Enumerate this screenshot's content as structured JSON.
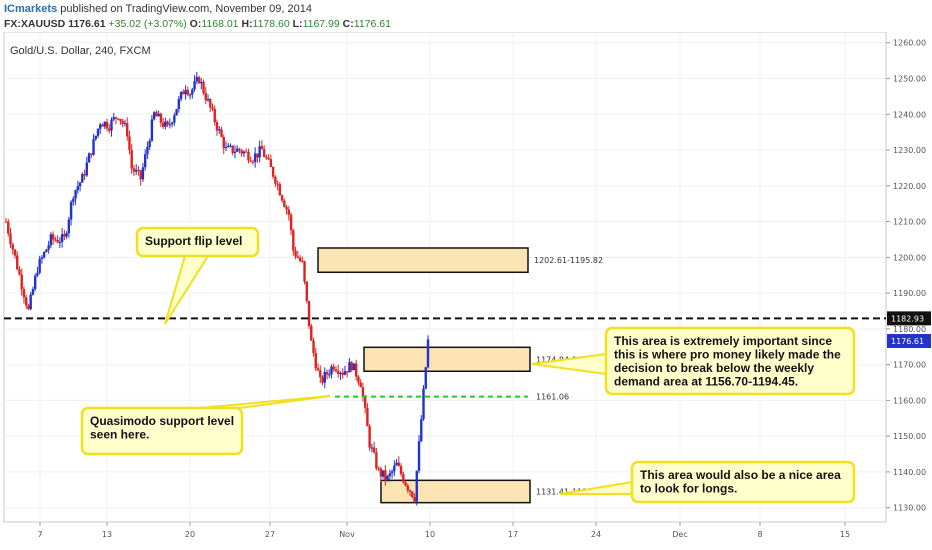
{
  "header": {
    "brand": "ICmarkets",
    "published": "published on TradingView.com, November 09, 2014",
    "symbol": "FX:XAUUSD",
    "price": "1176.61",
    "change": "+35.02 (+3.07%)",
    "o_label": "O:",
    "o_value": "1168.01",
    "h_label": "H:",
    "h_value": "1178.60",
    "l_label": "L:",
    "l_value": "1167.99",
    "c_label": "C:",
    "c_value": "1176.61"
  },
  "chart_data": {
    "type": "candlestick",
    "title": "Gold/U.S. Dollar, 240, FXCM",
    "y_ticks": [
      "1260.00",
      "1250.00",
      "1240.00",
      "1230.00",
      "1220.00",
      "1210.00",
      "1200.00",
      "1190.00",
      "1180.00",
      "1170.00",
      "1160.00",
      "1150.00",
      "1140.00",
      "1130.00"
    ],
    "x_ticks": [
      "7",
      "13",
      "20",
      "27",
      "Nov",
      "10",
      "17",
      "24",
      "Dec",
      "8",
      "15"
    ],
    "ylim": [
      1126,
      1263
    ],
    "colors": {
      "up": "#2233cc",
      "down": "#dd2222",
      "zone_fill": "#fbe3b4",
      "callout_fill": "#ffffcc",
      "callout_border": "#f0e020"
    },
    "price_path": [
      [
        0,
        1210
      ],
      [
        3,
        1195
      ],
      [
        5,
        1185
      ],
      [
        7,
        1197
      ],
      [
        10,
        1205
      ],
      [
        13,
        1205
      ],
      [
        15,
        1218
      ],
      [
        17,
        1222
      ],
      [
        19,
        1230
      ],
      [
        21,
        1238
      ],
      [
        23,
        1237
      ],
      [
        25,
        1240
      ],
      [
        27,
        1235
      ],
      [
        28,
        1225
      ],
      [
        30,
        1222
      ],
      [
        33,
        1240
      ],
      [
        36,
        1236
      ],
      [
        40,
        1248
      ],
      [
        41,
        1246
      ],
      [
        43,
        1250
      ],
      [
        46,
        1240
      ],
      [
        49,
        1230
      ],
      [
        52,
        1230
      ],
      [
        55,
        1228
      ],
      [
        57,
        1230
      ],
      [
        60,
        1222
      ],
      [
        63,
        1212
      ],
      [
        64,
        1202
      ],
      [
        66,
        1198
      ],
      [
        68,
        1176
      ],
      [
        70,
        1165
      ],
      [
        73,
        1170
      ],
      [
        75,
        1168
      ],
      [
        77,
        1170
      ],
      [
        79,
        1165
      ],
      [
        81,
        1148
      ],
      [
        83,
        1140
      ],
      [
        85,
        1138
      ],
      [
        87,
        1142
      ],
      [
        89,
        1137
      ],
      [
        91,
        1133
      ],
      [
        93,
        1162
      ],
      [
        94,
        1176.61
      ]
    ],
    "levels": [
      {
        "name": "support-flip-level",
        "price": 1182.93,
        "label": "1182.93",
        "style": "dashed-black"
      },
      {
        "name": "quasimodo-level",
        "price": 1161.06,
        "label": "1161.06",
        "style": "dashed-green"
      }
    ],
    "current_price": {
      "price": 1176.61,
      "label": "1176.61"
    },
    "zones": [
      {
        "name": "zone-1202",
        "top": 1202.61,
        "bottom": 1195.82,
        "label": "1202.61-1195.82"
      },
      {
        "name": "zone-1174",
        "top": 1174.84,
        "bottom": 1168.15,
        "label": "1174.84-1168.15"
      },
      {
        "name": "zone-1131",
        "top": 1137.65,
        "bottom": 1131.41,
        "label": "1131.41-1137.65"
      }
    ],
    "annotations": [
      {
        "name": "support-flip-callout",
        "lines": [
          "Support flip level"
        ]
      },
      {
        "name": "quasimodo-callout",
        "lines": [
          "Quasimodo support level",
          "seen here."
        ]
      },
      {
        "name": "important-area-callout",
        "lines": [
          "This area is extremely important since",
          "this is where pro money likely made the",
          "decision to break below the weekly",
          "demand area at 1156.70-1194.45."
        ]
      },
      {
        "name": "longs-area-callout",
        "lines": [
          "This area would also be a nice area",
          "to look for longs."
        ]
      }
    ]
  }
}
